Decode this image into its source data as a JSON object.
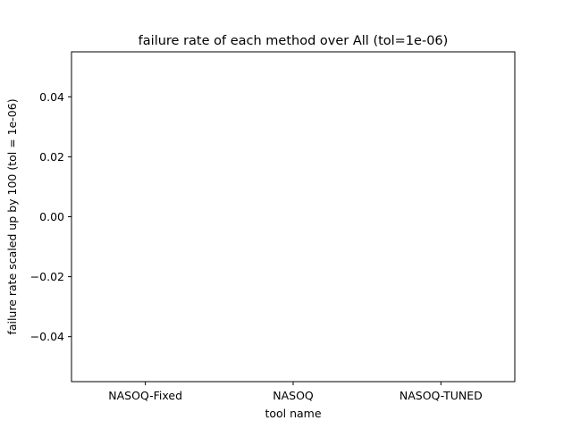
{
  "chart_data": {
    "type": "bar",
    "title": "failure rate of each method over All (tol=1e-06)",
    "xlabel": "tool name",
    "ylabel": "failure rate scaled up by 100 (tol = 1e-06)",
    "categories": [
      "NASOQ-Fixed",
      "NASOQ",
      "NASOQ-TUNED"
    ],
    "values": [
      0,
      0,
      0
    ],
    "ylim": [
      -0.055,
      0.055
    ],
    "yticks": [
      -0.04,
      -0.02,
      0.0,
      0.02,
      0.04
    ],
    "ytick_labels": [
      "−0.04",
      "−0.02",
      "0.00",
      "0.02",
      "0.04"
    ],
    "grid": false,
    "colors": {
      "bar": "#1f77b4",
      "axes": "#000000"
    }
  }
}
